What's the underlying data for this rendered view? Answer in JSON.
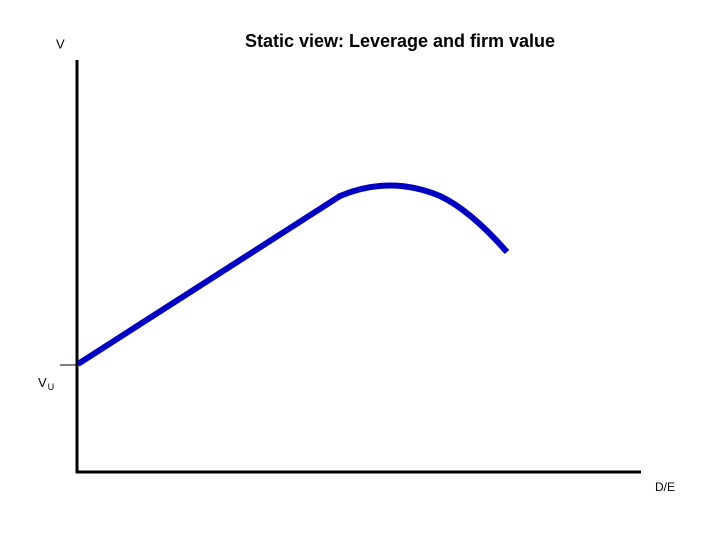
{
  "title": "Static view: Leverage and firm value",
  "y_axis_label": "V",
  "x_axis_label": "D/E",
  "intercept_label": {
    "label": "V",
    "subscript": "U"
  }
}
